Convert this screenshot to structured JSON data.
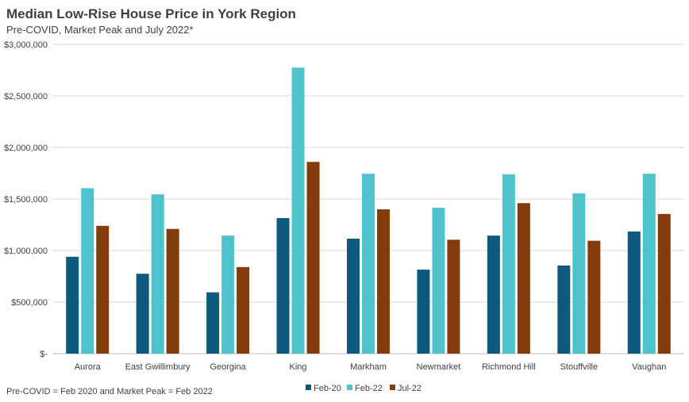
{
  "chart_data": {
    "type": "bar",
    "title": "Median Low-Rise House Price in York Region",
    "subtitle": "Pre-COVID, Market Peak and July 2022*",
    "footnote": "Pre-COVID = Feb 2020 and Market Peak = Feb 2022",
    "categories": [
      "Aurora",
      "East Gwillimbury",
      "Georgina",
      "King",
      "Markham",
      "Newmarket",
      "Richmond Hill",
      "Stouffville",
      "Vaughan"
    ],
    "series": [
      {
        "name": "Feb-20",
        "color": "#0e5a7e",
        "values": [
          940000,
          775000,
          595000,
          1315000,
          1115000,
          815000,
          1145000,
          855000,
          1185000
        ]
      },
      {
        "name": "Feb-22",
        "color": "#4fc3cb",
        "values": [
          1605000,
          1545000,
          1145000,
          2775000,
          1745000,
          1415000,
          1740000,
          1555000,
          1745000
        ]
      },
      {
        "name": "Jul-22",
        "color": "#843c0c",
        "values": [
          1240000,
          1210000,
          840000,
          1860000,
          1400000,
          1105000,
          1460000,
          1095000,
          1355000
        ]
      }
    ],
    "ylim": [
      0,
      3000000
    ],
    "yticks": [
      0,
      500000,
      1000000,
      1500000,
      2000000,
      2500000,
      3000000
    ],
    "ytick_labels": [
      "$-",
      "$500,000",
      "$1,000,000",
      "$1,500,000",
      "$2,000,000",
      "$2,500,000",
      "$3,000,000"
    ],
    "grid": true,
    "legend_position": "bottom"
  }
}
